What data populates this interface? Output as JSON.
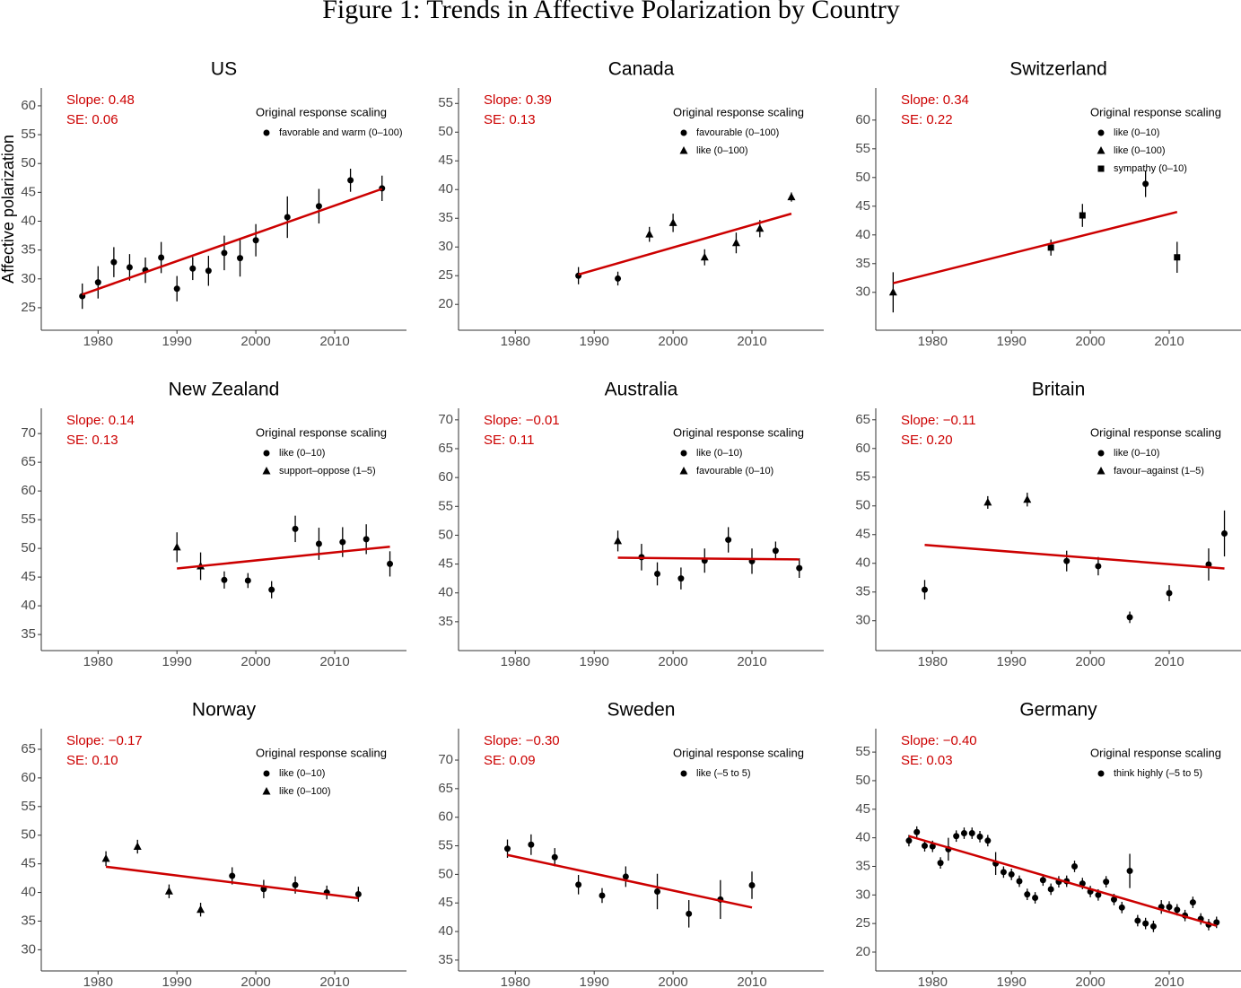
{
  "title": "Figure 1: Trends in Affective Polarization by Country",
  "chart_data": [
    {
      "type": "scatter",
      "title": "US",
      "ylabel": "Affective polarization",
      "annotations": [
        "Slope: 0.48",
        "SE: 0.06"
      ],
      "legend_title": "Original response scaling",
      "xlim": [
        1972.8,
        2019.1
      ],
      "xticks": [
        1980,
        1990,
        2000,
        2010
      ],
      "ylim": [
        21.1,
        63.1
      ],
      "yticks": [
        25,
        30,
        35,
        40,
        45,
        50,
        55,
        60
      ],
      "series": [
        {
          "name": "favorable and warm (0–100)",
          "marker": "circle",
          "color": "#000000",
          "x": [
            1978,
            1980,
            1982,
            1984,
            1986,
            1988,
            1990,
            1992,
            1994,
            1996,
            1998,
            2000,
            2004,
            2008,
            2012,
            2016
          ],
          "values": [
            27.0,
            29.4,
            32.9,
            32.0,
            31.5,
            33.7,
            28.3,
            31.8,
            31.4,
            34.5,
            33.6,
            36.7,
            40.7,
            42.6,
            47.1,
            45.7
          ],
          "errors": [
            2.2,
            2.8,
            2.6,
            2.3,
            2.2,
            2.7,
            2.2,
            2.0,
            2.6,
            3.0,
            3.2,
            2.8,
            3.6,
            3.0,
            2.0,
            2.2
          ]
        }
      ],
      "trend": {
        "color": "#cc0000",
        "x": [
          1978,
          2016
        ],
        "values": [
          27.3,
          45.6
        ]
      }
    },
    {
      "type": "scatter",
      "title": "Canada",
      "annotations": [
        "Slope: 0.39",
        "SE: 0.13"
      ],
      "legend_title": "Original response scaling",
      "xlim": [
        1972.8,
        2019.1
      ],
      "xticks": [
        1980,
        1990,
        2000,
        2010
      ],
      "ylim": [
        15.5,
        57.7
      ],
      "yticks": [
        20,
        25,
        30,
        35,
        40,
        45,
        50,
        55
      ],
      "series": [
        {
          "name": "favourable (0–100)",
          "marker": "circle",
          "color": "#000000",
          "x": [
            1988,
            1993
          ],
          "values": [
            25.0,
            24.5
          ],
          "errors": [
            1.5,
            1.2
          ]
        },
        {
          "name": "like (0–100)",
          "marker": "triangle",
          "color": "#000000",
          "x": [
            1997,
            2000,
            2004,
            2008,
            2011,
            2015
          ],
          "values": [
            32.2,
            34.2,
            28.2,
            30.7,
            33.2,
            38.7
          ],
          "errors": [
            1.3,
            1.6,
            1.4,
            1.8,
            1.5,
            0.8
          ]
        }
      ],
      "trend": {
        "color": "#cc0000",
        "x": [
          1988,
          2015
        ],
        "values": [
          25.2,
          35.8
        ]
      }
    },
    {
      "type": "scatter",
      "title": "Switzerland",
      "annotations": [
        "Slope: 0.34",
        "SE: 0.22"
      ],
      "legend_title": "Original response scaling",
      "xlim": [
        1972.8,
        2019.1
      ],
      "xticks": [
        1980,
        1990,
        2000,
        2010
      ],
      "ylim": [
        23.4,
        65.6
      ],
      "yticks": [
        30,
        35,
        40,
        45,
        50,
        55,
        60
      ],
      "series": [
        {
          "name": "like (0–10)",
          "marker": "circle",
          "color": "#000000",
          "x": [
            2007
          ],
          "values": [
            48.9
          ],
          "errors": [
            2.3
          ]
        },
        {
          "name": "like (0–100)",
          "marker": "triangle",
          "color": "#000000",
          "x": [
            1975
          ],
          "values": [
            30.0
          ],
          "errors": [
            3.5
          ]
        },
        {
          "name": "sympathy (0–10)",
          "marker": "square",
          "color": "#000000",
          "x": [
            1995,
            1999,
            2011
          ],
          "values": [
            37.8,
            43.4,
            36.1
          ],
          "errors": [
            1.4,
            2.0,
            2.7
          ]
        }
      ],
      "trend": {
        "color": "#cc0000",
        "x": [
          1975,
          2011
        ],
        "values": [
          31.6,
          44.0
        ]
      }
    },
    {
      "type": "scatter",
      "title": "New Zealand",
      "annotations": [
        "Slope: 0.14",
        "SE: 0.13"
      ],
      "legend_title": "Original response scaling",
      "xlim": [
        1972.8,
        2019.1
      ],
      "xticks": [
        1980,
        1990,
        2000,
        2010
      ],
      "ylim": [
        32.2,
        74.4
      ],
      "yticks": [
        35,
        40,
        45,
        50,
        55,
        60,
        65,
        70
      ],
      "series": [
        {
          "name": "like (0–10)",
          "marker": "circle",
          "color": "#000000",
          "x": [
            1996,
            1999,
            2002,
            2005,
            2008,
            2011,
            2014,
            2017
          ],
          "values": [
            44.5,
            44.4,
            42.8,
            53.4,
            50.8,
            51.1,
            51.6,
            47.3
          ],
          "errors": [
            1.5,
            1.3,
            1.5,
            2.3,
            2.8,
            2.6,
            2.6,
            2.2
          ]
        },
        {
          "name": "support–oppose (1–5)",
          "marker": "triangle",
          "color": "#000000",
          "x": [
            1990,
            1993
          ],
          "values": [
            50.2,
            46.9
          ],
          "errors": [
            2.6,
            2.4
          ]
        }
      ],
      "trend": {
        "color": "#cc0000",
        "x": [
          1990,
          2017
        ],
        "values": [
          46.5,
          50.3
        ]
      }
    },
    {
      "type": "scatter",
      "title": "Australia",
      "annotations": [
        "Slope: −0.01",
        "SE: 0.11"
      ],
      "legend_title": "Original response scaling",
      "xlim": [
        1972.8,
        2019.1
      ],
      "xticks": [
        1980,
        1990,
        2000,
        2010
      ],
      "ylim": [
        30.0,
        72.0
      ],
      "yticks": [
        35,
        40,
        45,
        50,
        55,
        60,
        65,
        70
      ],
      "series": [
        {
          "name": "like (0–10)",
          "marker": "circle",
          "color": "#000000",
          "x": [
            1996,
            1998,
            2001,
            2004,
            2007,
            2010,
            2013,
            2016
          ],
          "values": [
            46.2,
            43.3,
            42.5,
            45.6,
            49.2,
            45.5,
            47.3,
            44.3
          ],
          "errors": [
            2.3,
            2.0,
            1.9,
            2.1,
            2.2,
            2.2,
            1.6,
            1.7
          ]
        },
        {
          "name": "favourable (0–10)",
          "marker": "triangle",
          "color": "#000000",
          "x": [
            1993
          ],
          "values": [
            49.0
          ],
          "errors": [
            1.8
          ]
        }
      ],
      "trend": {
        "color": "#cc0000",
        "x": [
          1993,
          2016
        ],
        "values": [
          46.1,
          45.8
        ]
      }
    },
    {
      "type": "scatter",
      "title": "Britain",
      "annotations": [
        "Slope: −0.11",
        "SE: 0.20"
      ],
      "legend_title": "Original response scaling",
      "xlim": [
        1972.8,
        2019.1
      ],
      "xticks": [
        1980,
        1990,
        2000,
        2010
      ],
      "ylim": [
        24.8,
        67.0
      ],
      "yticks": [
        30,
        35,
        40,
        45,
        50,
        55,
        60,
        65
      ],
      "series": [
        {
          "name": "like (0–10)",
          "marker": "circle",
          "color": "#000000",
          "x": [
            1979,
            1997,
            2001,
            2005,
            2010,
            2015,
            2017
          ],
          "values": [
            35.4,
            40.4,
            39.5,
            30.6,
            34.8,
            39.8,
            45.2
          ],
          "errors": [
            1.7,
            1.8,
            1.6,
            1.0,
            1.4,
            2.8,
            4.0
          ]
        },
        {
          "name": "favour–against (1–5)",
          "marker": "triangle",
          "color": "#000000",
          "x": [
            1987,
            1992
          ],
          "values": [
            50.6,
            51.1
          ],
          "errors": [
            1.1,
            1.2
          ]
        }
      ],
      "trend": {
        "color": "#cc0000",
        "x": [
          1979,
          2017
        ],
        "values": [
          43.2,
          39.1
        ]
      }
    },
    {
      "type": "scatter",
      "title": "Norway",
      "annotations": [
        "Slope: −0.17",
        "SE: 0.10"
      ],
      "legend_title": "Original response scaling",
      "xlim": [
        1972.8,
        2019.1
      ],
      "xticks": [
        1980,
        1990,
        2000,
        2010
      ],
      "ylim": [
        26.3,
        68.6
      ],
      "yticks": [
        30,
        35,
        40,
        45,
        50,
        55,
        60,
        65
      ],
      "series": [
        {
          "name": "like (0–10)",
          "marker": "circle",
          "color": "#000000",
          "x": [
            1997,
            2001,
            2005,
            2009,
            2013
          ],
          "values": [
            42.9,
            40.6,
            41.3,
            40.0,
            39.7
          ],
          "errors": [
            1.5,
            1.6,
            1.5,
            1.2,
            1.3
          ]
        },
        {
          "name": "like (0–100)",
          "marker": "triangle",
          "color": "#000000",
          "x": [
            1981,
            1985,
            1989,
            1993
          ],
          "values": [
            45.9,
            48.0,
            40.2,
            37.0
          ],
          "errors": [
            1.3,
            1.2,
            1.2,
            1.2
          ]
        }
      ],
      "trend": {
        "color": "#cc0000",
        "x": [
          1981,
          2013
        ],
        "values": [
          44.5,
          39.0
        ]
      }
    },
    {
      "type": "scatter",
      "title": "Sweden",
      "annotations": [
        "Slope: −0.30",
        "SE: 0.09"
      ],
      "legend_title": "Original response scaling",
      "xlim": [
        1972.8,
        2019.1
      ],
      "xticks": [
        1980,
        1990,
        2000,
        2010
      ],
      "ylim": [
        33.1,
        75.5
      ],
      "yticks": [
        35,
        40,
        45,
        50,
        55,
        60,
        65,
        70
      ],
      "series": [
        {
          "name": "like (–5 to 5)",
          "marker": "circle",
          "color": "#000000",
          "x": [
            1979,
            1982,
            1985,
            1988,
            1991,
            1994,
            1998,
            2002,
            2006,
            2010
          ],
          "values": [
            54.5,
            55.2,
            53.0,
            48.2,
            46.3,
            49.6,
            47.0,
            43.1,
            45.6,
            48.1
          ],
          "errors": [
            1.6,
            1.8,
            1.6,
            1.7,
            1.3,
            1.8,
            3.1,
            2.4,
            3.4,
            2.4
          ]
        }
      ],
      "trend": {
        "color": "#cc0000",
        "x": [
          1979,
          2010
        ],
        "values": [
          53.4,
          44.2
        ]
      }
    },
    {
      "type": "scatter",
      "title": "Germany",
      "annotations": [
        "Slope: −0.40",
        "SE: 0.03"
      ],
      "legend_title": "Original response scaling",
      "xlim": [
        1972.8,
        2019.1
      ],
      "xticks": [
        1980,
        1990,
        2000,
        2010
      ],
      "ylim": [
        16.7,
        59.1
      ],
      "yticks": [
        20,
        25,
        30,
        35,
        40,
        45,
        50,
        55
      ],
      "series": [
        {
          "name": "think highly (–5 to 5)",
          "marker": "circle",
          "color": "#000000",
          "x": [
            1977,
            1978,
            1979,
            1980,
            1981,
            1982,
            1983,
            1984,
            1985,
            1986,
            1987,
            1988,
            1989,
            1990,
            1991,
            1992,
            1993,
            1994,
            1995,
            1996,
            1997,
            1998,
            1999,
            2000,
            2001,
            2002,
            2003,
            2004,
            2005,
            2006,
            2007,
            2008,
            2009,
            2010,
            2011,
            2012,
            2013,
            2014,
            2015,
            2016
          ],
          "values": [
            39.5,
            41.0,
            38.6,
            38.5,
            35.6,
            38.0,
            40.3,
            40.8,
            40.8,
            40.2,
            39.5,
            35.5,
            34.0,
            33.6,
            32.4,
            30.1,
            29.5,
            32.6,
            31.0,
            32.3,
            32.4,
            35.0,
            32.0,
            30.6,
            30.0,
            32.3,
            29.2,
            27.8,
            34.2,
            25.5,
            25.0,
            24.5,
            27.9,
            27.9,
            27.4,
            26.4,
            28.7,
            25.8,
            24.8,
            25.2
          ],
          "errors": [
            1.0,
            1.0,
            1.0,
            1.0,
            1.0,
            2.0,
            1.0,
            1.0,
            1.0,
            1.0,
            1.0,
            2.0,
            1.0,
            1.0,
            1.0,
            1.0,
            1.0,
            1.0,
            1.0,
            1.0,
            1.0,
            1.0,
            1.0,
            1.0,
            1.0,
            1.0,
            1.0,
            1.0,
            3.0,
            1.0,
            1.0,
            1.0,
            1.2,
            1.0,
            1.0,
            1.0,
            1.0,
            1.0,
            1.0,
            1.0
          ]
        }
      ],
      "trend": {
        "color": "#cc0000",
        "x": [
          1977,
          2016
        ],
        "values": [
          40.3,
          24.6
        ]
      }
    }
  ]
}
